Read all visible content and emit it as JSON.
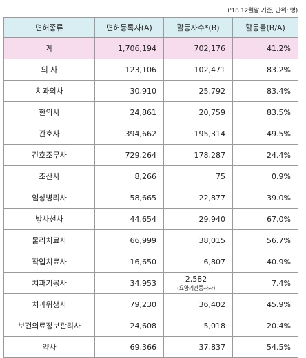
{
  "note": "('18.12월말 기준, 단위: 명)",
  "headers": [
    "면허종류",
    "면허등록자(A)",
    "활동자수*(B)",
    "활동률(B/A)"
  ],
  "rows": [
    {
      "name": "계",
      "registered": "1,706,194",
      "active": "702,176",
      "rate": "41.2%"
    },
    {
      "name": "의  사",
      "registered": "123,106",
      "active": "102,471",
      "rate": "83.2%"
    },
    {
      "name": "치과의사",
      "registered": "30,910",
      "active": "25,792",
      "rate": "83.4%"
    },
    {
      "name": "한의사",
      "registered": "24,861",
      "active": "20,759",
      "rate": "83.5%"
    },
    {
      "name": "간호사",
      "registered": "394,662",
      "active": "195,314",
      "rate": "49.5%"
    },
    {
      "name": "간호조무사",
      "registered": "729,264",
      "active": "178,287",
      "rate": "24.4%"
    },
    {
      "name": "조산사",
      "registered": "8,266",
      "active": "75",
      "rate": "0.9%"
    },
    {
      "name": "임상병리사",
      "registered": "58,665",
      "active": "22,877",
      "rate": "39.0%"
    },
    {
      "name": "방사선사",
      "registered": "44,654",
      "active": "29,940",
      "rate": "67.0%"
    },
    {
      "name": "물리치료사",
      "registered": "66,999",
      "active": "38,015",
      "rate": "56.7%"
    },
    {
      "name": "작업치료사",
      "registered": "16,650",
      "active": "6,807",
      "rate": "40.9%"
    },
    {
      "name": "치과기공사",
      "registered": "34,953",
      "active": "2,582",
      "active_note": "(요양기관종사자)",
      "rate": "7.4%"
    },
    {
      "name": "치과위생사",
      "registered": "79,230",
      "active": "36,402",
      "rate": "45.9%"
    },
    {
      "name": "보건의료정보관리사",
      "registered": "24,608",
      "active": "5,018",
      "rate": "20.4%"
    },
    {
      "name": "약사",
      "registered": "69,366",
      "active": "37,837",
      "rate": "54.5%"
    }
  ]
}
